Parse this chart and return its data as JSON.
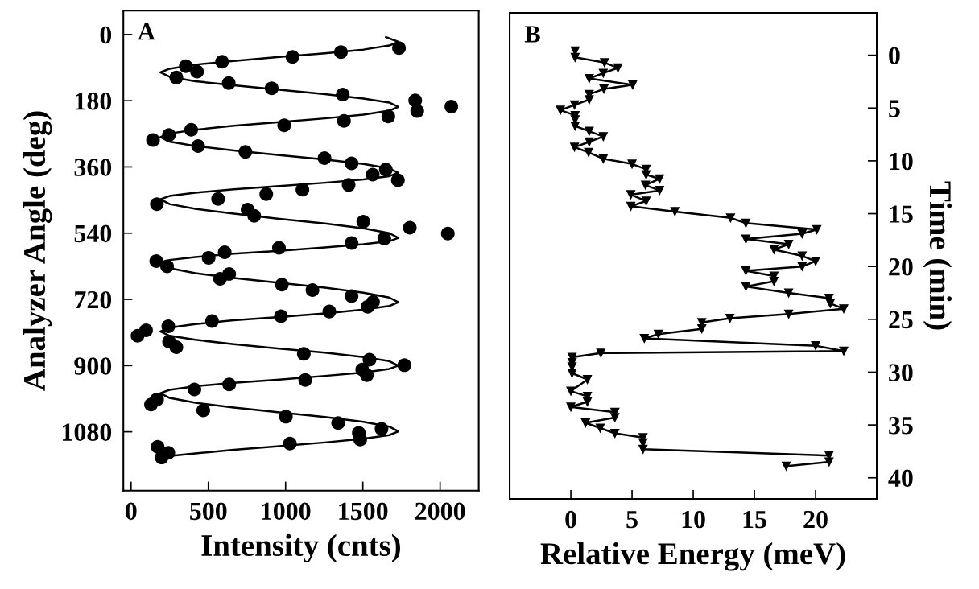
{
  "chart_data": [
    {
      "type": "scatter",
      "annotations": [
        "A"
      ],
      "xlabel": "Intensity (cnts)",
      "ylabel": "Analyzer Angle (deg)",
      "xlim": [
        -50,
        2250
      ],
      "xticks": [
        0,
        500,
        1000,
        1500,
        2000
      ],
      "ylim": [
        1240,
        -65
      ],
      "yticks": [
        0,
        180,
        360,
        540,
        720,
        900,
        1080
      ],
      "series": [
        {
          "color": "#000000",
          "marker": "circle",
          "x": [
            1734,
            1358,
            1045,
            589,
            354,
            427,
            293,
            632,
            910,
            1370,
            1839,
            1852,
            2073,
            1665,
            1378,
            991,
            389,
            245,
            142,
            434,
            740,
            1252,
            1427,
            1649,
            1564,
            1727,
            1408,
            1109,
            875,
            563,
            167,
            754,
            797,
            1503,
            1804,
            2050,
            1639,
            1427,
            957,
            606,
            502,
            163,
            233,
            576,
            635,
            976,
            1174,
            1427,
            1566,
            1531,
            1283,
            970,
            524,
            241,
            97,
            42,
            246,
            293,
            1118,
            1543,
            1769,
            1496,
            1526,
            1127,
            635,
            410,
            168,
            129,
            467,
            1002,
            1340,
            1621,
            1474,
            1483,
            1028,
            172,
            241,
            198
          ],
          "values": [
            37,
            48,
            61,
            74,
            86,
            101,
            117,
            132,
            146,
            163,
            179,
            208,
            196,
            223,
            235,
            247,
            259,
            273,
            287,
            303,
            319,
            336,
            350,
            367,
            381,
            396,
            409,
            422,
            434,
            447,
            461,
            476,
            493,
            509,
            525,
            541,
            555,
            567,
            580,
            592,
            607,
            616,
            630,
            664,
            651,
            680,
            695,
            711,
            727,
            740,
            753,
            766,
            779,
            793,
            804,
            819,
            835,
            850,
            868,
            884,
            899,
            911,
            926,
            939,
            951,
            965,
            992,
            1006,
            1022,
            1039,
            1056,
            1072,
            1083,
            1101,
            1112,
            1121,
            1137,
            1150
          ]
        },
        {
          "type": "line",
          "color": "#000000",
          "line_style": "solid",
          "x": [
            1650,
            1730,
            1671,
            1504,
            1255,
            960,
            665,
            416,
            249,
            190,
            249,
            416,
            665,
            960,
            1255,
            1504,
            1671,
            1730,
            1671,
            1504,
            1255,
            960,
            665,
            416,
            249,
            190,
            249,
            416,
            665,
            960,
            1255,
            1504,
            1671,
            1730,
            1671,
            1504,
            1255,
            960,
            665,
            416,
            249,
            190,
            249,
            416,
            665,
            960,
            1255,
            1504,
            1671,
            1730,
            1671,
            1504,
            1255,
            960,
            665,
            416,
            249,
            190,
            249,
            416,
            665,
            960,
            1255,
            1504,
            1671,
            1730,
            1671,
            1504,
            1255,
            960,
            665,
            416,
            249,
            190,
            249,
            416,
            665,
            960,
            1255,
            1504,
            1671,
            1730,
            1671,
            1504,
            1255,
            960,
            665,
            416,
            249,
            190,
            249,
            416,
            665,
            960,
            1255,
            1504,
            1671,
            1730,
            1671,
            1504,
            1255,
            960,
            665,
            416,
            240
          ],
          "values": [
            7,
            20,
            30,
            41,
            51,
            61,
            72,
            82,
            93,
            103,
            115,
            127,
            138,
            150,
            162,
            174,
            185,
            197,
            207,
            218,
            228,
            238,
            248,
            259,
            269,
            279,
            291,
            303,
            315,
            328,
            340,
            352,
            364,
            376,
            385,
            394,
            403,
            412,
            421,
            430,
            439,
            448,
            461,
            474,
            487,
            501,
            514,
            527,
            540,
            553,
            562,
            570,
            579,
            588,
            596,
            605,
            613,
            622,
            635,
            649,
            662,
            675,
            688,
            702,
            715,
            728,
            738,
            748,
            758,
            768,
            777,
            787,
            797,
            807,
            819,
            830,
            842,
            854,
            865,
            877,
            888,
            900,
            909,
            919,
            928,
            938,
            947,
            956,
            966,
            975,
            988,
            1001,
            1014,
            1027,
            1040,
            1053,
            1066,
            1079,
            1089,
            1099,
            1109,
            1119,
            1129,
            1139,
            1146
          ]
        }
      ]
    },
    {
      "type": "line",
      "annotations": [
        "B"
      ],
      "xlabel": "Relative Energy (meV)",
      "y2label": "Time (min)",
      "xlim": [
        -5,
        25
      ],
      "xticks": [
        0,
        5,
        10,
        15,
        20
      ],
      "y2lim": [
        42,
        -4
      ],
      "y2ticks": [
        0,
        5,
        10,
        15,
        20,
        25,
        30,
        35,
        40
      ],
      "series": [
        {
          "axis": "y2",
          "color": "#000000",
          "marker": "triangle",
          "line_style": "solid",
          "x": [
            0.35,
            0.35,
            2.75,
            3.85,
            2.65,
            1.5,
            5.05,
            2.7,
            1.5,
            1.5,
            0.3,
            -0.85,
            0.35,
            0.35,
            0.35,
            1.5,
            2.65,
            1.5,
            0.3,
            1.45,
            2.65,
            5.0,
            6.15,
            6.15,
            7.25,
            6.1,
            7.25,
            4.9,
            6.15,
            4.9,
            8.5,
            13.05,
            14.3,
            20.1,
            18.9,
            14.3,
            17.8,
            16.6,
            18.9,
            20.0,
            18.9,
            14.3,
            16.6,
            16.6,
            14.3,
            17.8,
            21.1,
            21.2,
            22.3,
            17.8,
            13.0,
            10.7,
            10.7,
            7.15,
            6.0,
            20.0,
            22.3,
            2.45,
            0.1,
            0.1,
            0.1,
            0.1,
            1.35,
            0.0,
            1.35,
            1.35,
            0.0,
            3.6,
            3.6,
            1.2,
            2.4,
            3.6,
            5.9,
            5.9,
            5.9,
            21.1,
            21.1,
            17.6
          ],
          "values": [
            -0.4,
            0.2,
            0.7,
            1.2,
            1.7,
            2.2,
            2.8,
            3.2,
            3.7,
            4.2,
            4.7,
            5.2,
            5.7,
            6.1,
            6.7,
            7.2,
            7.7,
            8.2,
            8.7,
            9.2,
            9.8,
            10.3,
            10.8,
            11.3,
            11.7,
            12.3,
            12.8,
            13.2,
            13.8,
            14.3,
            14.8,
            15.4,
            15.9,
            16.5,
            16.9,
            17.4,
            17.9,
            18.4,
            19.0,
            19.5,
            20.0,
            20.4,
            20.9,
            21.4,
            21.9,
            22.5,
            23.0,
            23.5,
            24.0,
            24.5,
            24.9,
            25.3,
            25.9,
            26.4,
            26.8,
            27.5,
            28.0,
            28.2,
            28.6,
            29.1,
            29.5,
            30.1,
            30.7,
            31.8,
            32.3,
            32.8,
            33.3,
            33.8,
            34.3,
            34.8,
            35.3,
            35.8,
            36.2,
            36.7,
            37.3,
            37.9,
            38.5,
            38.9
          ]
        }
      ]
    }
  ]
}
